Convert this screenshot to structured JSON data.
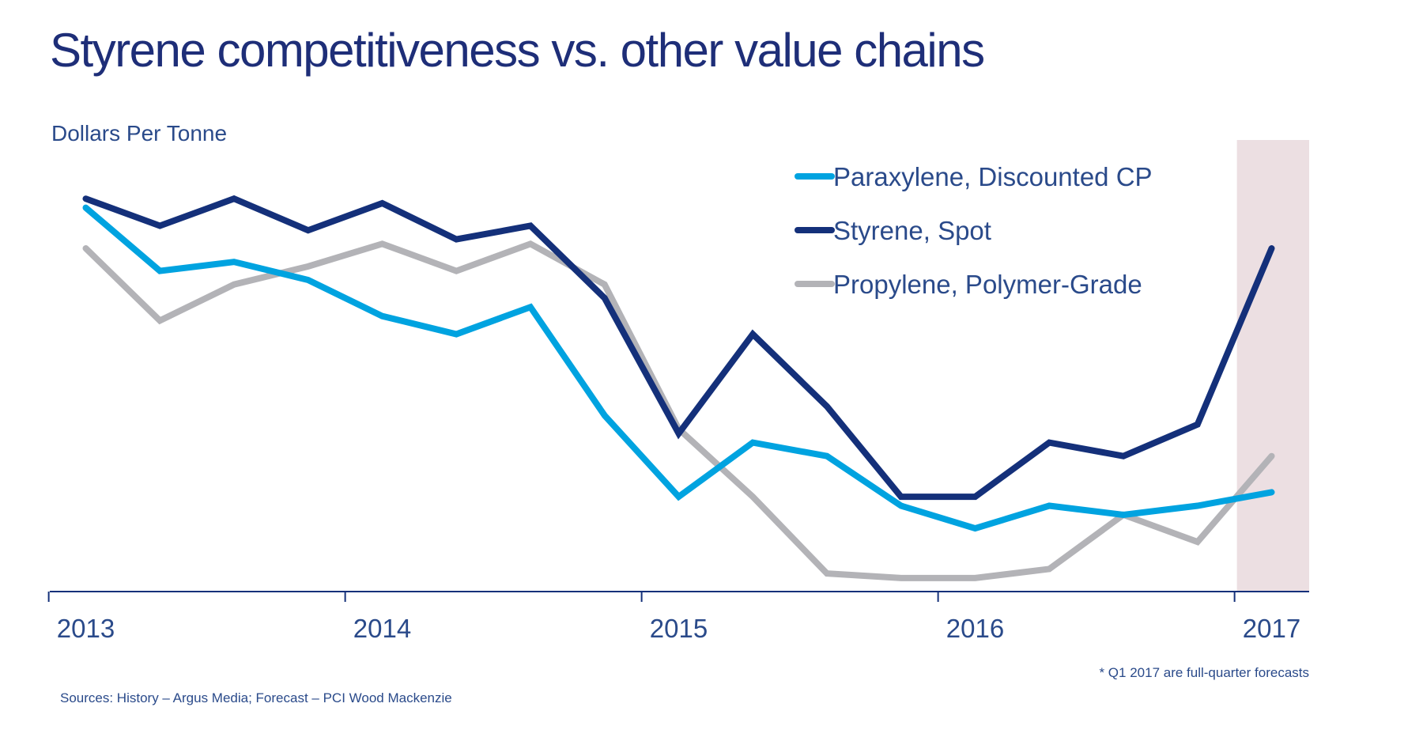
{
  "chart_data": {
    "type": "line",
    "title": "Styrene competitiveness vs. other value chains",
    "ylabel": "Dollars Per Tonne",
    "xlabel": "",
    "x": [
      2013.0,
      2013.25,
      2013.5,
      2013.75,
      2014.0,
      2014.25,
      2014.5,
      2014.75,
      2015.0,
      2015.25,
      2015.5,
      2015.75,
      2016.0,
      2016.25,
      2016.5,
      2016.75,
      2017.0
    ],
    "x_tick_labels": [
      "2013",
      "2014",
      "2015",
      "2016",
      "2017"
    ],
    "y_axis_note": "no y tick labels shown; values are relative estimates",
    "ylim": [
      0,
      100
    ],
    "grid": false,
    "legend_position": "top-right",
    "series": [
      {
        "name": "Paraxylene, Discounted CP",
        "color": "#00a3e0",
        "values": [
          85,
          71,
          73,
          69,
          61,
          57,
          63,
          39,
          21,
          33,
          30,
          19,
          14,
          19,
          17,
          19,
          22
        ]
      },
      {
        "name": "Styrene, Spot",
        "color": "#14307a",
        "values": [
          87,
          81,
          87,
          80,
          86,
          78,
          81,
          65,
          35,
          57,
          41,
          21,
          21,
          33,
          30,
          37,
          76
        ]
      },
      {
        "name": "Propylene, Polymer-Grade",
        "color": "#b3b3b7",
        "values": [
          76,
          60,
          68,
          72,
          77,
          71,
          77,
          68,
          36,
          21,
          4,
          3,
          3,
          5,
          17,
          11,
          30
        ]
      }
    ],
    "forecast_region": {
      "from": 2017.0,
      "color": "#ecdfe2"
    },
    "footnote": "* Q1 2017 are full-quarter  forecasts",
    "source": "Sources: History – Argus Media; Forecast – PCI Wood Mackenzie"
  }
}
